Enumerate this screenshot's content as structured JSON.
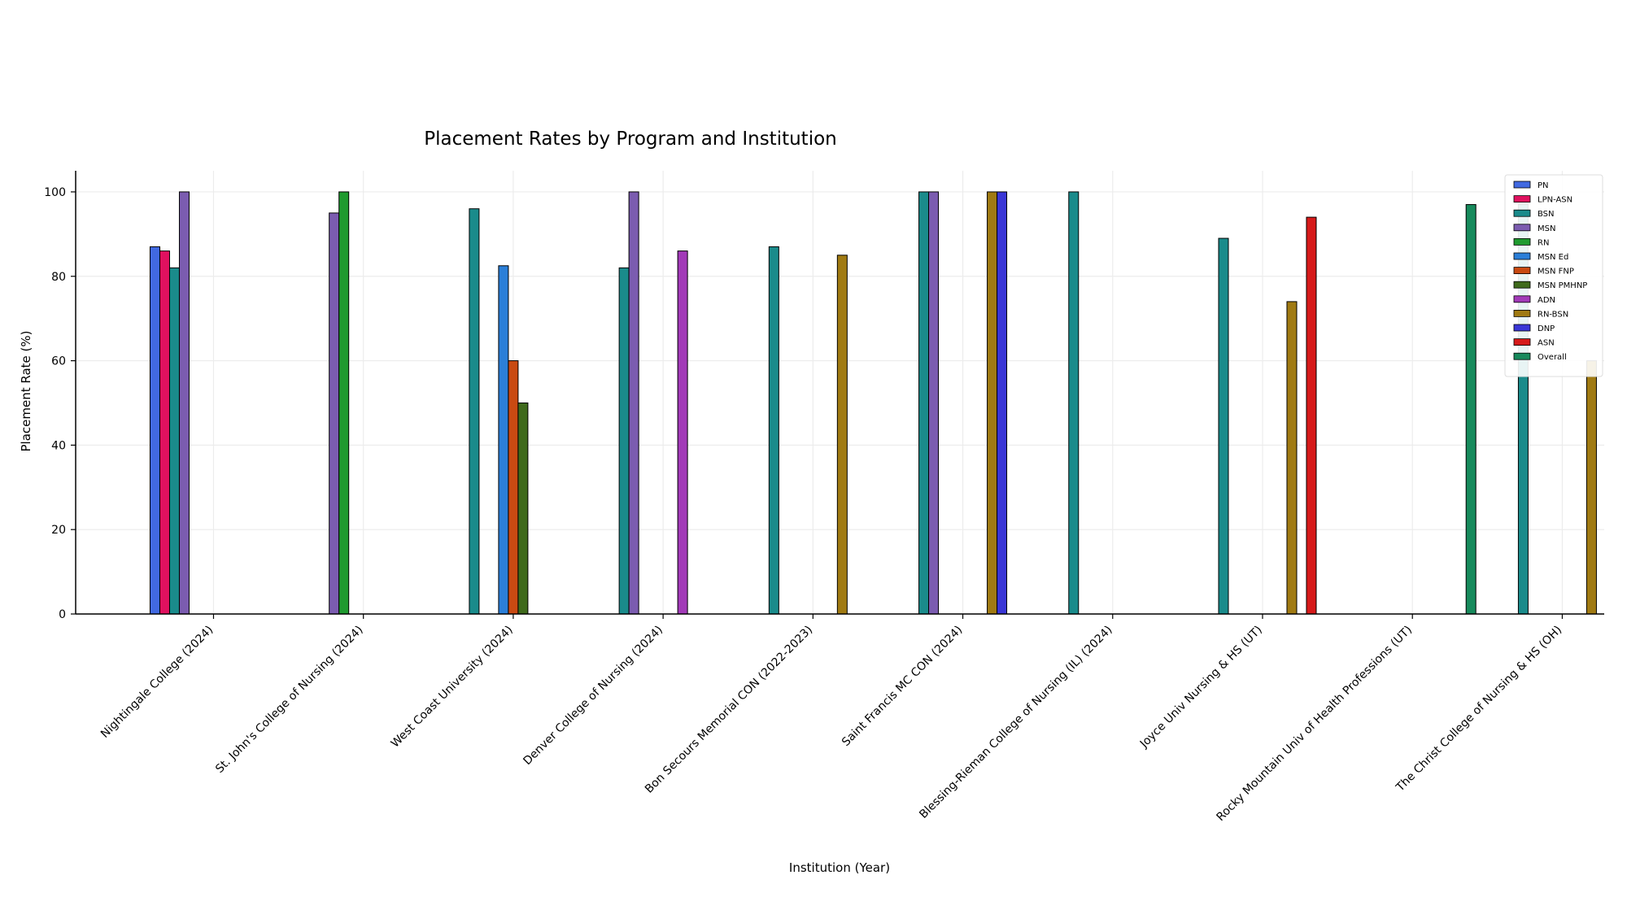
{
  "chart_data": {
    "type": "bar",
    "title": "Placement Rates by Program and Institution",
    "xlabel": "Institution (Year)",
    "ylabel": "Placement Rate (%)",
    "ylim": [
      0,
      105
    ],
    "yticks": [
      0,
      20,
      40,
      60,
      80,
      100
    ],
    "grid": true,
    "legend_position": "top-right",
    "categories": [
      "Nightingale College (2024)",
      "St. John's College of Nursing (2024)",
      "West Coast University (2024)",
      "Denver College of Nursing (2024)",
      "Bon Secours Memorial CON (2022-2023)",
      "Saint Francis MC CON (2024)",
      "Blessing-Rieman College of Nursing (IL) (2024)",
      "Joyce Univ Nursing & HS (UT)",
      "Rocky Mountain Univ of Health Professions (UT)",
      "The Christ College of Nursing & HS (OH)"
    ],
    "series": [
      {
        "name": "PN",
        "color": "#4169e1",
        "values": [
          87,
          null,
          null,
          null,
          null,
          null,
          null,
          null,
          null,
          null
        ]
      },
      {
        "name": "LPN-ASN",
        "color": "#e0115f",
        "values": [
          86,
          null,
          null,
          null,
          null,
          null,
          null,
          null,
          null,
          null
        ]
      },
      {
        "name": "BSN",
        "color": "#1a8b8b",
        "values": [
          82,
          null,
          96,
          82,
          87,
          100,
          100,
          89,
          null,
          97
        ]
      },
      {
        "name": "MSN",
        "color": "#7b5cb0",
        "values": [
          100,
          95,
          null,
          100,
          null,
          100,
          null,
          null,
          null,
          null
        ]
      },
      {
        "name": "RN",
        "color": "#1f9a2f",
        "values": [
          null,
          100,
          null,
          null,
          null,
          null,
          null,
          null,
          null,
          null
        ]
      },
      {
        "name": "MSN Ed",
        "color": "#2b7fd8",
        "values": [
          null,
          null,
          82.5,
          null,
          null,
          null,
          null,
          null,
          null,
          null
        ]
      },
      {
        "name": "MSN FNP",
        "color": "#c94a12",
        "values": [
          null,
          null,
          60,
          null,
          null,
          null,
          null,
          null,
          null,
          null
        ]
      },
      {
        "name": "MSN PMHNP",
        "color": "#3f6a1c",
        "values": [
          null,
          null,
          50,
          null,
          null,
          null,
          null,
          null,
          null,
          null
        ]
      },
      {
        "name": "ADN",
        "color": "#a23ab8",
        "values": [
          null,
          null,
          null,
          86,
          null,
          null,
          null,
          null,
          null,
          null
        ]
      },
      {
        "name": "RN-BSN",
        "color": "#a07a12",
        "values": [
          null,
          null,
          null,
          null,
          85,
          100,
          null,
          74,
          null,
          60
        ]
      },
      {
        "name": "DNP",
        "color": "#3a36d6",
        "values": [
          null,
          null,
          null,
          null,
          null,
          100,
          null,
          null,
          null,
          null
        ]
      },
      {
        "name": "ASN",
        "color": "#d61a1a",
        "values": [
          null,
          null,
          null,
          null,
          null,
          null,
          null,
          94,
          null,
          null
        ]
      },
      {
        "name": "Overall",
        "color": "#178a5c",
        "values": [
          null,
          null,
          null,
          null,
          null,
          null,
          null,
          null,
          97,
          null
        ]
      }
    ]
  }
}
